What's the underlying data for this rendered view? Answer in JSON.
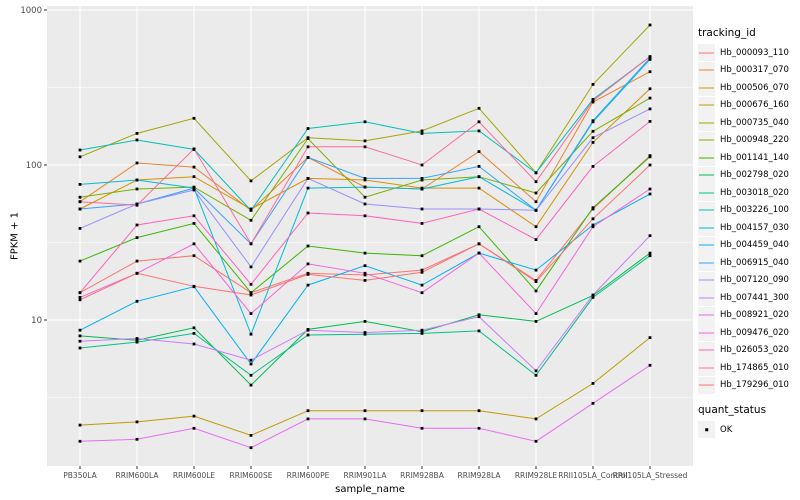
{
  "chart_data": {
    "type": "line",
    "title": "",
    "xlabel": "sample_name",
    "ylabel": "FPKM + 1",
    "y_scale": "log10",
    "y_ticks": [
      1000,
      100,
      10
    ],
    "y_minor_ticks": [
      316.2,
      31.62,
      3.162
    ],
    "ylim": [
      1.1,
      1060
    ],
    "grid": "on",
    "panel_bg": "#EBEBEB",
    "grid_color": "#FFFFFF",
    "point_color": "#000000",
    "tick_label_color": "#4D4D4D",
    "categories": [
      "PB350LA",
      "RRIM600LA",
      "RRIM600LE",
      "RRIM600SE",
      "RRIM600PE",
      "RRIM901LA",
      "RRIM928BA",
      "RRIM928LA",
      "RRIM928LE",
      "RRII105LA_Control",
      "RRII105LA_Stressed"
    ],
    "series": [
      {
        "name": "Hb_000093_110",
        "color": "#F8766D",
        "values": [
          15,
          24,
          26,
          15,
          20,
          19.5,
          21,
          31,
          18,
          52,
          115
        ]
      },
      {
        "name": "Hb_000317_070",
        "color": "#EA8331",
        "values": [
          58,
          103,
          97,
          51,
          112,
          72,
          70,
          122,
          58,
          255,
          400
        ]
      },
      {
        "name": "Hb_000506_070",
        "color": "#D89000",
        "values": [
          52,
          80,
          84,
          52,
          82,
          80,
          71,
          71,
          40,
          140,
          310
        ]
      },
      {
        "name": "Hb_000676_160",
        "color": "#C09B00",
        "values": [
          2.1,
          2.2,
          2.4,
          1.8,
          2.6,
          2.6,
          2.6,
          2.6,
          2.3,
          3.9,
          7.7
        ]
      },
      {
        "name": "Hb_000735_040",
        "color": "#A3A500",
        "values": [
          113,
          160,
          200,
          79,
          150,
          143,
          166,
          232,
          89,
          331,
          800
        ]
      },
      {
        "name": "Hb_000948_220",
        "color": "#7CAE00",
        "values": [
          62,
          70,
          72,
          44,
          148,
          62,
          80,
          84,
          66,
          165,
          270
        ]
      },
      {
        "name": "Hb_001141_140",
        "color": "#39B600",
        "values": [
          24,
          34,
          42,
          15,
          30,
          27,
          26,
          40,
          15.4,
          53,
          113
        ]
      },
      {
        "name": "Hb_002798_020",
        "color": "#00BB4E",
        "values": [
          7.9,
          7.4,
          8.9,
          3.8,
          8.7,
          9.8,
          8.4,
          10.8,
          9.8,
          14.4,
          27
        ]
      },
      {
        "name": "Hb_003018_020",
        "color": "#00C087",
        "values": [
          6.6,
          7.2,
          8.2,
          4.4,
          8.0,
          8.1,
          8.2,
          8.5,
          4.4,
          14,
          26
        ]
      },
      {
        "name": "Hb_003226_100",
        "color": "#00C0B8",
        "values": [
          125,
          145,
          126,
          51,
          172,
          190,
          160,
          166,
          89,
          265,
          500
        ]
      },
      {
        "name": "Hb_004157_030",
        "color": "#00BCD8",
        "values": [
          75,
          80,
          71,
          8.1,
          71,
          72,
          70,
          84,
          51,
          190,
          480
        ]
      },
      {
        "name": "Hb_004459_040",
        "color": "#00B0F6",
        "values": [
          8.6,
          13.2,
          16.4,
          5.2,
          16.8,
          22.4,
          16.8,
          27,
          21,
          41,
          65
        ]
      },
      {
        "name": "Hb_006915_040",
        "color": "#35A2FF",
        "values": [
          52,
          56,
          71,
          31,
          112,
          82,
          82,
          98,
          51,
          193,
          490
        ]
      },
      {
        "name": "Hb_007120_090",
        "color": "#9590FF",
        "values": [
          39,
          56,
          69,
          22,
          82,
          56,
          52,
          52,
          51,
          150,
          230
        ]
      },
      {
        "name": "Hb_007441_300",
        "color": "#C77CFF",
        "values": [
          7.3,
          7.6,
          7.0,
          5.5,
          8.6,
          8.3,
          8.6,
          10.5,
          4.7,
          14.5,
          35
        ]
      },
      {
        "name": "Hb_008921_020",
        "color": "#E76BF3",
        "values": [
          1.65,
          1.7,
          2.0,
          1.5,
          2.3,
          2.3,
          2.0,
          2.0,
          1.65,
          2.9,
          5.1
        ]
      },
      {
        "name": "Hb_009476_020",
        "color": "#FA62DB",
        "values": [
          14,
          20,
          31,
          11,
          23,
          20,
          15,
          27,
          11,
          40,
          70
        ]
      },
      {
        "name": "Hb_026053_020",
        "color": "#FF62BC",
        "values": [
          15,
          41,
          47,
          17,
          49,
          47,
          42,
          52,
          33,
          98,
          191
        ]
      },
      {
        "name": "Hb_174865_010",
        "color": "#FF6A98",
        "values": [
          58,
          55,
          127,
          31,
          131,
          131,
          100,
          190,
          78,
          260,
          500
        ]
      },
      {
        "name": "Hb_179296_010",
        "color": "#FC7173",
        "values": [
          13.5,
          20,
          16.5,
          14.5,
          19.7,
          18,
          20.3,
          31,
          17.7,
          45,
          100
        ]
      }
    ],
    "legend_position": "right"
  },
  "legend": {
    "tracking_title": "tracking_id",
    "quant_title": "quant_status",
    "quant_items": [
      {
        "label": "OK"
      }
    ]
  }
}
